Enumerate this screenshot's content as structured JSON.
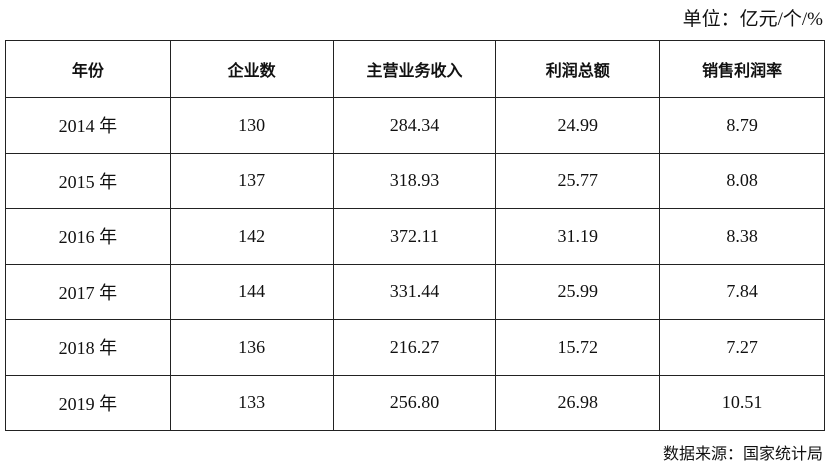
{
  "unit": "单位：亿元/个/%",
  "table": {
    "headers": [
      "年份",
      "企业数",
      "主营业务收入",
      "利润总额",
      "销售利润率"
    ],
    "rows": [
      [
        "2014 年",
        "130",
        "284.34",
        "24.99",
        "8.79"
      ],
      [
        "2015 年",
        "137",
        "318.93",
        "25.77",
        "8.08"
      ],
      [
        "2016 年",
        "142",
        "372.11",
        "31.19",
        "8.38"
      ],
      [
        "2017 年",
        "144",
        "331.44",
        "25.99",
        "7.84"
      ],
      [
        "2018 年",
        "136",
        "216.27",
        "15.72",
        "7.27"
      ],
      [
        "2019 年",
        "133",
        "256.80",
        "26.98",
        "10.51"
      ]
    ]
  },
  "source": "数据来源：国家统计局"
}
